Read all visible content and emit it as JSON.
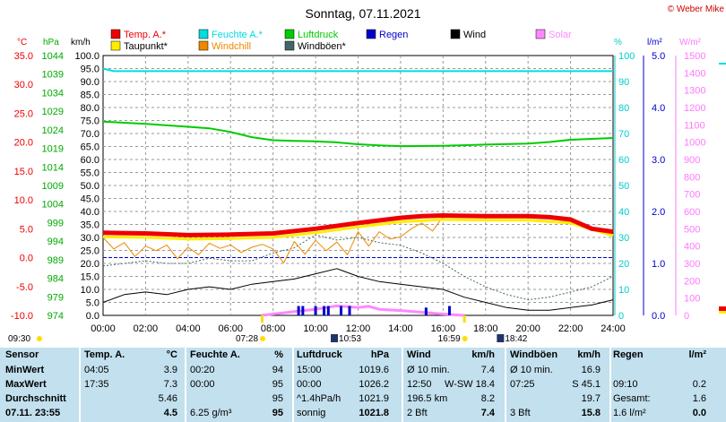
{
  "title": "Sonntag, 07.11.2021",
  "copyright": "© Weber Mike",
  "legend": [
    {
      "label": "Temp. A.*",
      "color": "#ee0000"
    },
    {
      "label": "Feuchte A.*",
      "color": "#00dddd"
    },
    {
      "label": "Luftdruck",
      "color": "#00cc00"
    },
    {
      "label": "Regen",
      "color": "#0000cc"
    },
    {
      "label": "Wind",
      "color": "#000000"
    },
    {
      "label": "Solar",
      "color": "#ff88ff"
    },
    {
      "label": "Taupunkt*",
      "color": "#ffee00"
    },
    {
      "label": "Windchill",
      "color": "#ee8800"
    },
    {
      "label": "Windböen*",
      "color": "#446666"
    }
  ],
  "axis_units": {
    "temp": "°C",
    "press": "hPa",
    "wind": "km/h",
    "hum": "%",
    "rain": "l/m²",
    "solar": "W/m²"
  },
  "sun": {
    "rise": "07:28",
    "set": "16:59",
    "moonrise": "10:53",
    "moonset": "18:42",
    "prev": "09:30"
  },
  "chart_data": {
    "type": "line",
    "x_range": [
      "00:00",
      "24:00"
    ],
    "x_ticks": [
      "00:00",
      "02:00",
      "04:00",
      "06:00",
      "08:00",
      "10:00",
      "12:00",
      "14:00",
      "16:00",
      "18:00",
      "20:00",
      "22:00",
      "24:00"
    ],
    "axes": {
      "temp": {
        "unit": "°C",
        "range": [
          -10,
          35
        ],
        "ticks": [
          "35.0",
          "30.0",
          "25.0",
          "20.0",
          "15.0",
          "10.0",
          "5.0",
          "0.0",
          "-5.0",
          "-10.0"
        ]
      },
      "press": {
        "unit": "hPa",
        "range": [
          974,
          1044
        ],
        "ticks": [
          "1044",
          "1039",
          "1034",
          "1029",
          "1024",
          "1019",
          "1014",
          "1009",
          "1004",
          "999",
          "994",
          "989",
          "984",
          "979",
          "974"
        ]
      },
      "wind": {
        "unit": "km/h",
        "range": [
          0,
          100
        ],
        "ticks": [
          "100.0",
          "95.0",
          "90.0",
          "85.0",
          "80.0",
          "75.0",
          "70.0",
          "65.0",
          "60.0",
          "55.0",
          "50.0",
          "45.0",
          "40.0",
          "35.0",
          "30.0",
          "25.0",
          "20.0",
          "15.0",
          "10.0",
          "5.0",
          "0.0"
        ]
      },
      "hum": {
        "unit": "%",
        "range": [
          0,
          100
        ],
        "ticks": [
          "100",
          "90",
          "80",
          "70",
          "60",
          "50",
          "40",
          "30",
          "20",
          "10",
          "0"
        ]
      },
      "rain": {
        "unit": "l/m²",
        "range": [
          0,
          5
        ],
        "ticks": [
          "5.0",
          "4.0",
          "3.0",
          "2.0",
          "1.0",
          "0.0"
        ]
      },
      "solar": {
        "unit": "W/m²",
        "range": [
          0,
          1500
        ],
        "ticks": [
          "1500",
          "1400",
          "1300",
          "1200",
          "1100",
          "1000",
          "900",
          "800",
          "700",
          "600",
          "500",
          "400",
          "300",
          "200",
          "100",
          "0"
        ]
      }
    },
    "series": [
      {
        "name": "Feuchte A.*",
        "axis": "hum",
        "color": "#00dddd",
        "x": [
          0,
          0.5,
          1,
          2,
          4,
          6,
          8,
          10,
          12,
          14,
          16,
          18,
          20,
          22,
          24
        ],
        "values": [
          95,
          94,
          94,
          94,
          94,
          94,
          94,
          94,
          94,
          94,
          94,
          94,
          94,
          94,
          94
        ]
      },
      {
        "name": "Luftdruck",
        "axis": "press",
        "color": "#00cc00",
        "x": [
          0,
          2,
          4,
          5,
          6,
          7,
          8,
          9,
          10,
          11,
          12,
          13,
          14,
          16,
          18,
          20,
          21,
          22,
          24
        ],
        "values": [
          1026.2,
          1025.6,
          1024.8,
          1024.4,
          1023.4,
          1022.0,
          1021.2,
          1021.0,
          1020.9,
          1020.6,
          1020.1,
          1019.8,
          1019.6,
          1019.7,
          1020.0,
          1020.3,
          1020.7,
          1021.3,
          1021.8
        ]
      },
      {
        "name": "Temp. A.*",
        "axis": "temp",
        "color": "#ee0000",
        "x": [
          0,
          2,
          4,
          6,
          8,
          10,
          12,
          14,
          15,
          16,
          18,
          20,
          21,
          22,
          23,
          24
        ],
        "values": [
          4.3,
          4.2,
          3.9,
          4.0,
          4.2,
          5.0,
          6.0,
          6.9,
          7.2,
          7.3,
          7.2,
          7.2,
          7.0,
          6.6,
          5.0,
          4.5
        ]
      },
      {
        "name": "Taupunkt*",
        "axis": "temp",
        "color": "#ffee00",
        "x": [
          0,
          2,
          4,
          6,
          8,
          10,
          12,
          14,
          16,
          18,
          20,
          22,
          24
        ],
        "values": [
          3.6,
          3.5,
          3.2,
          3.3,
          3.5,
          4.3,
          5.3,
          6.2,
          6.6,
          6.5,
          6.5,
          6.0,
          3.8
        ]
      },
      {
        "name": "Windchill",
        "axis": "temp",
        "color": "#ee8800",
        "x": [
          0,
          0.5,
          1,
          1.5,
          2,
          2.5,
          3,
          3.5,
          4,
          4.5,
          5,
          5.5,
          6,
          6.5,
          7,
          7.5,
          8,
          8.5,
          9,
          9.5,
          10,
          10.5,
          11,
          11.5,
          12,
          12.5,
          13,
          13.5,
          14,
          14.5,
          15,
          15.5,
          16,
          16.5
        ],
        "values": [
          3.5,
          1.5,
          2.6,
          0.2,
          2.0,
          1.2,
          2.2,
          -0.2,
          1.8,
          0.5,
          2.5,
          1.6,
          2.2,
          0.9,
          1.8,
          2.3,
          1.5,
          -0.9,
          2.8,
          0.6,
          3.0,
          1.2,
          2.7,
          0.5,
          4.5,
          2.0,
          4.5,
          3.2,
          3.6,
          5.0,
          6.0,
          4.6,
          7.1,
          7.3
        ]
      },
      {
        "name": "Windböen*",
        "axis": "wind",
        "color": "#446666",
        "x": [
          0,
          1,
          2,
          3,
          4,
          5,
          6,
          7,
          8,
          9,
          10,
          11,
          12,
          13,
          14,
          15,
          16,
          17,
          18,
          19,
          20,
          21,
          22,
          23,
          24
        ],
        "values": [
          19,
          20,
          21,
          20,
          20,
          22,
          21,
          21,
          24,
          26,
          31,
          29,
          30,
          28,
          27,
          24,
          20,
          15,
          11,
          8,
          6,
          7,
          9,
          11,
          15
        ]
      },
      {
        "name": "Wind",
        "axis": "wind",
        "color": "#000000",
        "x": [
          0,
          1,
          2,
          3,
          4,
          5,
          6,
          7,
          8,
          9,
          10,
          11,
          12,
          13,
          14,
          15,
          16,
          17,
          18,
          19,
          20,
          21,
          22,
          23,
          24
        ],
        "values": [
          5,
          8,
          9,
          8,
          10,
          11,
          10,
          12,
          13,
          14,
          16,
          18,
          15,
          13,
          12,
          11,
          10,
          7,
          5,
          3,
          2,
          2,
          3,
          4,
          6
        ]
      },
      {
        "name": "Solar",
        "axis": "solar",
        "color": "#ff88ff",
        "x": [
          7.47,
          8,
          9,
          10,
          10.5,
          11,
          11.5,
          12,
          12.5,
          13,
          14,
          15,
          16,
          16.98
        ],
        "values": [
          0,
          8,
          22,
          35,
          45,
          55,
          50,
          45,
          52,
          35,
          28,
          18,
          8,
          0
        ]
      }
    ],
    "rain_bars": {
      "x": [
        9.2,
        9.4,
        10.0,
        10.4,
        10.6,
        11.2,
        11.6,
        15.2,
        16.3
      ],
      "values": [
        0.18,
        0.18,
        0.18,
        0.18,
        0.18,
        0.18,
        0.18,
        0.15,
        0.18
      ]
    }
  },
  "table": {
    "headers": [
      "Sensor",
      "Temp. A.",
      "°C",
      "Feuchte A.",
      "%",
      "Luftdruck",
      "hPa",
      "Wind",
      "km/h",
      "Windböen",
      "km/h",
      "Regen",
      "l/m²"
    ],
    "rows": [
      [
        "MinWert",
        "04:05",
        "3.9",
        "00:20",
        "94",
        "15:00",
        "1019.6",
        "Ø 10 min.",
        "7.4",
        "Ø 10 min.",
        "16.9",
        "",
        ""
      ],
      [
        "MaxWert",
        "17:35",
        "7.3",
        "00:00",
        "95",
        "00:00",
        "1026.2",
        "12:50",
        "W-SW 18.4",
        "07:25",
        "S 45.1",
        "09:10",
        "0.2"
      ],
      [
        "Durchschnitt",
        "",
        "5.46",
        "",
        "95",
        "^1.4hPa/h",
        "1021.9",
        "196.5 km",
        "8.2",
        "",
        "19.7",
        "Gesamt:",
        "1.6"
      ],
      [
        "07.11.  23:55",
        "",
        "4.5",
        "6.25 g/m³",
        "95",
        "sonnig",
        "1021.8",
        "2 Bft",
        "7.4",
        "3 Bft",
        "15.8",
        "1.6 l/m²",
        "0.0"
      ]
    ]
  }
}
